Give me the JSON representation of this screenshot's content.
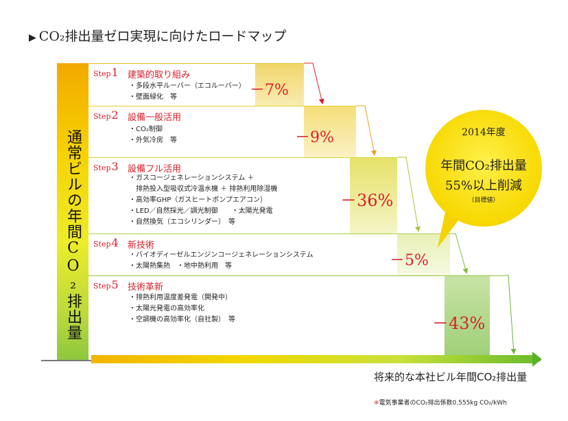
{
  "title": "CO₂排出量ゼロ実現に向けたロードマップ",
  "base_label": "通常ビルの年間CO₂排出量",
  "axis_label": "将来的な本社ビル年間CO₂排出量",
  "footnote_mark": "※",
  "footnote_text": "電気事業者のCO₂排出係数0.555kg CO₂/kWh",
  "steps": [
    {
      "step_word": "Step",
      "number": "1",
      "title": "建築的取り組み",
      "items": [
        "・多段水平ルーバー（エコルーバー）",
        "・壁面緑化　等"
      ],
      "reduction": "－7%",
      "reduction_value": -7,
      "color": "#f1cc3a"
    },
    {
      "step_word": "Step",
      "number": "2",
      "title": "設備一般活用",
      "items": [
        "・CO₂制御",
        "・外気冷房　等"
      ],
      "reduction": "－9%",
      "reduction_value": -9,
      "color": "#f0d13a"
    },
    {
      "step_word": "Step",
      "number": "3",
      "title": "設備フル活用",
      "items": [
        "・ガスコージェネレーションシステム ＋",
        "　排熱投入型吸収式冷温水機 ＋ 排熱利用除湿機",
        "・高効率GHP（ガスヒートポンプエアコン）",
        "・LED／自然採光／調光制御　　・太陽光発電",
        "・自然換気（エコシリンダー）　等"
      ],
      "reduction": "－36%",
      "reduction_value": -36,
      "color": "#d6d53a"
    },
    {
      "step_word": "Step",
      "number": "4",
      "title": "新技術",
      "items": [
        "・バイオディーゼルエンジンコージェネレーションシステム",
        "・太陽熱集熱　・地中熱利用　等"
      ],
      "reduction": "－5%",
      "reduction_value": -5,
      "color": "#a9cf45"
    },
    {
      "step_word": "Step",
      "number": "5",
      "title": "技術革新",
      "items": [
        "・排熱利用温度差発電（開発中）",
        "・太陽光発電の高効率化",
        "・空調機の高効率化（自社製）　等"
      ],
      "reduction": "－43%",
      "reduction_value": -43,
      "color": "#7ebf45"
    }
  ],
  "callout": {
    "year": "2014年度",
    "line1": "年間CO₂排出量",
    "line2": "55%以上削減",
    "note": "（目標値）"
  }
}
